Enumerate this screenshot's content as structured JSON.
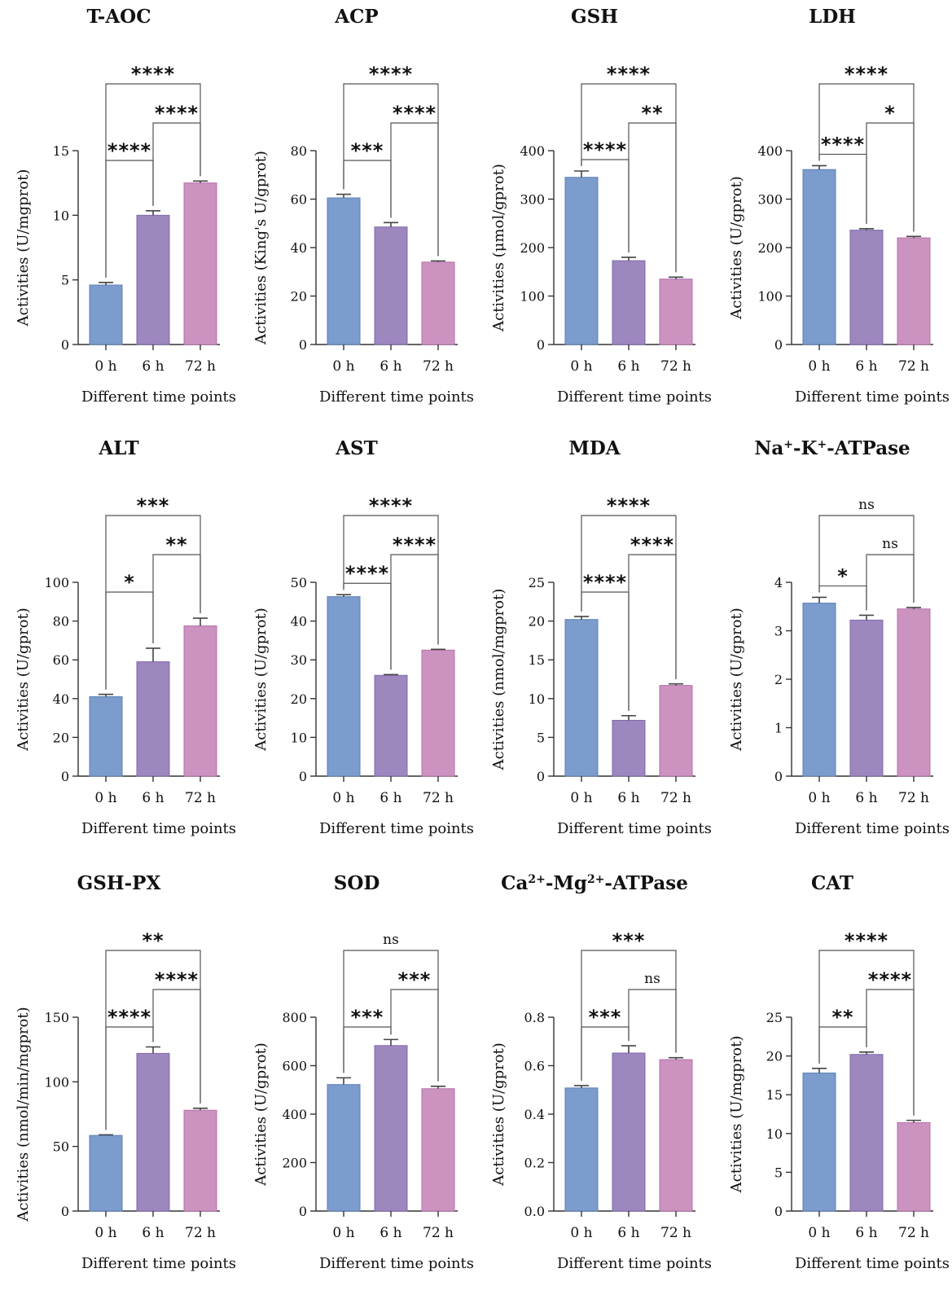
{
  "figure": {
    "xlabel": "Different time points",
    "categories": [
      "0 h",
      "6 h",
      "72 h"
    ],
    "colors": {
      "bar_fills": [
        "#7b9ccc",
        "#9d87bf",
        "#cc93c1"
      ],
      "bar_strokes": [
        "#5b7fb5",
        "#7f6aa9",
        "#b56fa9"
      ],
      "axis": "#333333",
      "text": "#111111"
    }
  },
  "chart_data": [
    {
      "type": "bar",
      "title": "T-AOC",
      "ylabel": "Activities (U/mgprot)",
      "categories": [
        "0 h",
        "6 h",
        "72 h"
      ],
      "xlabel": "Different time points",
      "values": [
        4.6,
        10.0,
        12.5
      ],
      "errors": [
        0.2,
        0.35,
        0.15
      ],
      "ylim": [
        0,
        15
      ],
      "yticks": [
        0,
        5,
        10,
        15
      ],
      "significance": [
        {
          "from": 0,
          "to": 1,
          "label": "****"
        },
        {
          "from": 1,
          "to": 2,
          "label": "****"
        },
        {
          "from": 0,
          "to": 2,
          "label": "****"
        }
      ]
    },
    {
      "type": "bar",
      "title": "ACP",
      "ylabel": "Activities (King's U/gprot)",
      "categories": [
        "0 h",
        "6 h",
        "72 h"
      ],
      "xlabel": "Different time points",
      "values": [
        60.5,
        48.5,
        34.0
      ],
      "errors": [
        1.5,
        1.8,
        0.5
      ],
      "ylim": [
        0,
        80
      ],
      "yticks": [
        0,
        20,
        40,
        60,
        80
      ],
      "significance": [
        {
          "from": 0,
          "to": 1,
          "label": "***"
        },
        {
          "from": 1,
          "to": 2,
          "label": "****"
        },
        {
          "from": 0,
          "to": 2,
          "label": "****"
        }
      ]
    },
    {
      "type": "bar",
      "title": "GSH",
      "ylabel": "Activities (μmol/gprot)",
      "categories": [
        "0 h",
        "6 h",
        "72 h"
      ],
      "xlabel": "Different time points",
      "values": [
        345,
        173,
        135
      ],
      "errors": [
        13,
        7,
        4
      ],
      "ylim": [
        0,
        400
      ],
      "yticks": [
        0,
        100,
        200,
        300,
        400
      ],
      "significance": [
        {
          "from": 0,
          "to": 1,
          "label": "****"
        },
        {
          "from": 1,
          "to": 2,
          "label": "**"
        },
        {
          "from": 0,
          "to": 2,
          "label": "****"
        }
      ]
    },
    {
      "type": "bar",
      "title": "LDH",
      "ylabel": "Activities (U/gprot)",
      "categories": [
        "0 h",
        "6 h",
        "72 h"
      ],
      "xlabel": "Different time points",
      "values": [
        361,
        236,
        220
      ],
      "errors": [
        8,
        3,
        3
      ],
      "ylim": [
        0,
        400
      ],
      "yticks": [
        0,
        100,
        200,
        300,
        400
      ],
      "significance": [
        {
          "from": 0,
          "to": 1,
          "label": "****"
        },
        {
          "from": 1,
          "to": 2,
          "label": "*"
        },
        {
          "from": 0,
          "to": 2,
          "label": "****"
        }
      ]
    },
    {
      "type": "bar",
      "title": "ALT",
      "ylabel": "Activities (U/gprot)",
      "categories": [
        "0 h",
        "6 h",
        "72 h"
      ],
      "xlabel": "Different time points",
      "values": [
        41,
        59,
        77.5
      ],
      "errors": [
        1.2,
        7,
        4
      ],
      "ylim": [
        0,
        100
      ],
      "yticks": [
        0,
        20,
        40,
        60,
        80,
        100
      ],
      "significance": [
        {
          "from": 0,
          "to": 1,
          "label": "*"
        },
        {
          "from": 1,
          "to": 2,
          "label": "**"
        },
        {
          "from": 0,
          "to": 2,
          "label": "***"
        }
      ]
    },
    {
      "type": "bar",
      "title": "AST",
      "ylabel": "Activities (U/gprot)",
      "categories": [
        "0 h",
        "6 h",
        "72 h"
      ],
      "xlabel": "Different time points",
      "values": [
        46.3,
        26.0,
        32.5
      ],
      "errors": [
        0.5,
        0.2,
        0.2
      ],
      "ylim": [
        0,
        50
      ],
      "yticks": [
        0,
        10,
        20,
        30,
        40,
        50
      ],
      "significance": [
        {
          "from": 0,
          "to": 1,
          "label": "****"
        },
        {
          "from": 1,
          "to": 2,
          "label": "****"
        },
        {
          "from": 0,
          "to": 2,
          "label": "****"
        }
      ]
    },
    {
      "type": "bar",
      "title": "MDA",
      "ylabel": "Activities (nmol/mgprot)",
      "categories": [
        "0 h",
        "6 h",
        "72 h"
      ],
      "xlabel": "Different time points",
      "values": [
        20.2,
        7.2,
        11.7
      ],
      "errors": [
        0.4,
        0.6,
        0.2
      ],
      "ylim": [
        0,
        25
      ],
      "yticks": [
        0,
        5,
        10,
        15,
        20,
        25
      ],
      "significance": [
        {
          "from": 0,
          "to": 1,
          "label": "****"
        },
        {
          "from": 1,
          "to": 2,
          "label": "****"
        },
        {
          "from": 0,
          "to": 2,
          "label": "****"
        }
      ]
    },
    {
      "type": "bar",
      "title": "Na⁺-K⁺-ATPase",
      "ylabel": "Activities (U/gprot)",
      "title_parts": [
        {
          "t": "Na"
        },
        {
          "t": "+",
          "sup": true
        },
        {
          "t": "-K"
        },
        {
          "t": "+",
          "sup": true
        },
        {
          "t": "-ATPase"
        }
      ],
      "categories": [
        "0 h",
        "6 h",
        "72 h"
      ],
      "xlabel": "Different time points",
      "values": [
        3.57,
        3.22,
        3.45
      ],
      "errors": [
        0.12,
        0.1,
        0.03
      ],
      "ylim": [
        0,
        4
      ],
      "yticks": [
        0,
        1,
        2,
        3,
        4
      ],
      "significance": [
        {
          "from": 0,
          "to": 1,
          "label": "*"
        },
        {
          "from": 1,
          "to": 2,
          "label": "ns"
        },
        {
          "from": 0,
          "to": 2,
          "label": "ns"
        }
      ]
    },
    {
      "type": "bar",
      "title": "GSH-PX",
      "ylabel": "Activities (nmol/min/mgprot)",
      "categories": [
        "0 h",
        "6 h",
        "72 h"
      ],
      "xlabel": "Different time points",
      "values": [
        58.5,
        122,
        78
      ],
      "errors": [
        0.5,
        5,
        1.5
      ],
      "ylim": [
        0,
        150
      ],
      "yticks": [
        0,
        50,
        100,
        150
      ],
      "significance": [
        {
          "from": 0,
          "to": 1,
          "label": "****"
        },
        {
          "from": 1,
          "to": 2,
          "label": "****"
        },
        {
          "from": 0,
          "to": 2,
          "label": "**"
        }
      ]
    },
    {
      "type": "bar",
      "title": "SOD",
      "ylabel": "Activities (U/gprot)",
      "categories": [
        "0 h",
        "6 h",
        "72 h"
      ],
      "xlabel": "Different time points",
      "values": [
        522,
        683,
        505
      ],
      "errors": [
        28,
        25,
        10
      ],
      "ylim": [
        0,
        800
      ],
      "yticks": [
        0,
        200,
        400,
        600,
        800
      ],
      "significance": [
        {
          "from": 0,
          "to": 1,
          "label": "***"
        },
        {
          "from": 1,
          "to": 2,
          "label": "***"
        },
        {
          "from": 0,
          "to": 2,
          "label": "ns"
        }
      ]
    },
    {
      "type": "bar",
      "title": "Ca²⁺-Mg²⁺-ATPase",
      "ylabel": "Activities (U/gprot)",
      "title_parts": [
        {
          "t": "Ca"
        },
        {
          "t": "2+",
          "sup": true
        },
        {
          "t": "-Mg"
        },
        {
          "t": "2+",
          "sup": true
        },
        {
          "t": "-ATPase"
        }
      ],
      "categories": [
        "0 h",
        "6 h",
        "72 h"
      ],
      "xlabel": "Different time points",
      "values": [
        0.508,
        0.652,
        0.625
      ],
      "errors": [
        0.01,
        0.03,
        0.008
      ],
      "ylim": [
        0,
        0.8
      ],
      "yticks": [
        0.0,
        0.2,
        0.4,
        0.6,
        0.8
      ],
      "ytick_decimals": 1,
      "significance": [
        {
          "from": 0,
          "to": 1,
          "label": "***"
        },
        {
          "from": 1,
          "to": 2,
          "label": "ns"
        },
        {
          "from": 0,
          "to": 2,
          "label": "***"
        }
      ]
    },
    {
      "type": "bar",
      "title": "CAT",
      "ylabel": "Activities (U/mgprot)",
      "categories": [
        "0 h",
        "6 h",
        "72 h"
      ],
      "xlabel": "Different time points",
      "values": [
        17.8,
        20.2,
        11.4
      ],
      "errors": [
        0.6,
        0.3,
        0.3
      ],
      "ylim": [
        0,
        25
      ],
      "yticks": [
        0,
        5,
        10,
        15,
        20,
        25
      ],
      "significance": [
        {
          "from": 0,
          "to": 1,
          "label": "**"
        },
        {
          "from": 1,
          "to": 2,
          "label": "****"
        },
        {
          "from": 0,
          "to": 2,
          "label": "****"
        }
      ]
    }
  ]
}
